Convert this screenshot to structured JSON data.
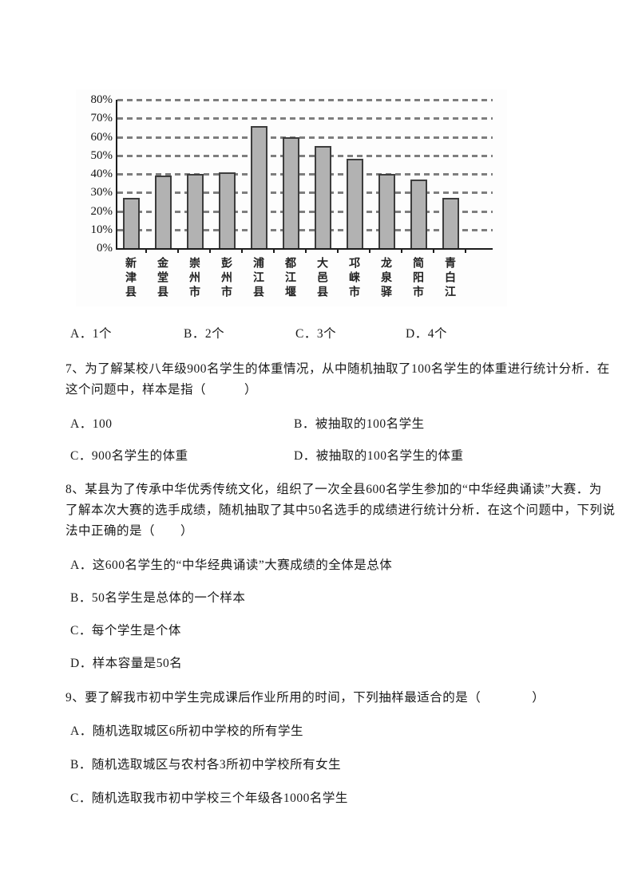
{
  "chart_data": {
    "type": "bar",
    "categories": [
      "新津县",
      "金堂县",
      "崇州市",
      "彭州市",
      "浦江县",
      "都江堰",
      "大邑县",
      "邛崃市",
      "龙泉驿",
      "简阳市",
      "青白江"
    ],
    "values": [
      27,
      39,
      40,
      41,
      66,
      60,
      55,
      48,
      40,
      37,
      27
    ],
    "title": "",
    "xlabel": "",
    "ylabel": "",
    "ylim": [
      0,
      80
    ],
    "ytick_step": 10,
    "ytick_labels": [
      "80%",
      "70%",
      "60%",
      "50%",
      "40%",
      "30%",
      "20%",
      "10%",
      "0%"
    ],
    "grid": "horizontal-dashed",
    "legend": "none",
    "bar_color": "#b2b2b2",
    "bar_border_color": "#3d3d3d",
    "gridline_color": "#7e7e7e",
    "axis_color": "#1c1c1c"
  },
  "q6_options": {
    "a": "A．1个",
    "b": "B．2个",
    "c": "C．3个",
    "d": "D．4个"
  },
  "q7": {
    "line1": "7、为了解某校八年级900名学生的体重情况，从中随机抽取了100名学生的体重进行统计分析．在",
    "line2": "这个问题中，样本是指（　　　）",
    "option_a": "A．100",
    "option_b": "B．被抽取的100名学生",
    "option_c": "C．900名学生的体重",
    "option_d": "D．被抽取的100名学生的体重"
  },
  "q8": {
    "line1": "8、某县为了传承中华优秀传统文化，组织了一次全县600名学生参加的“中华经典诵读”大赛．为",
    "line2": "了解本次大赛的选手成绩，随机抽取了其中50名选手的成绩进行统计分析．在这个问题中，下列说",
    "line3": "法中正确的是（　　）",
    "option_a": "A．这600名学生的“中华经典诵读”大赛成绩的全体是总体",
    "option_b": "B．50名学生是总体的一个样本",
    "option_c": "C．每个学生是个体",
    "option_d": "D．样本容量是50名"
  },
  "q9": {
    "line1": "9、要了解我市初中学生完成课后作业所用的时间，下列抽样最适合的是（　　　　）",
    "option_a": "A．随机选取城区6所初中学校的所有学生",
    "option_b": "B．随机选取城区与农村各3所初中学校所有女生",
    "option_c": "C．随机选取我市初中学校三个年级各1000名学生"
  }
}
